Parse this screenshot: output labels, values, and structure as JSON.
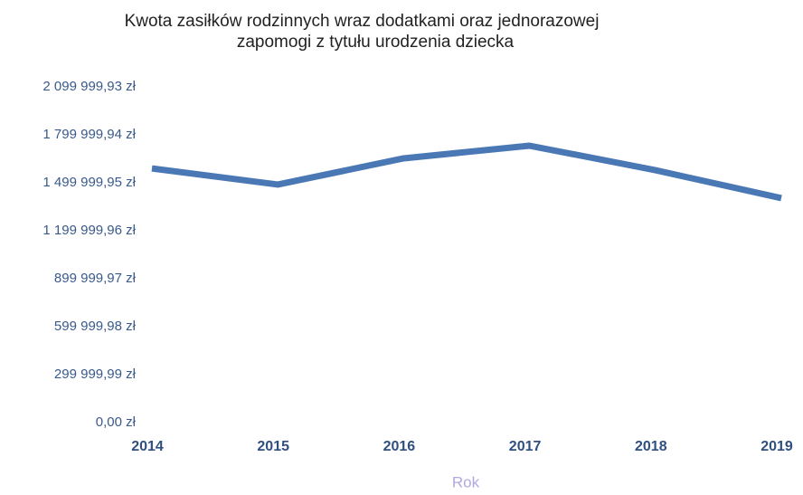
{
  "chart_data": {
    "type": "line",
    "title": [
      "Kwota zasiłków rodzinnych wraz dodatkami oraz jednorazowej",
      "zapomogi z tytułu urodzenia dziecka"
    ],
    "x_label": "Rok",
    "categories": [
      "2014",
      "2015",
      "2016",
      "2017",
      "2018",
      "2019"
    ],
    "series": [
      {
        "name": "Kwota",
        "color": "#4a78b5",
        "values": [
          1590000,
          1489000,
          1653000,
          1732000,
          1579000,
          1404000
        ]
      }
    ],
    "ylim": [
      0,
      2099999.93
    ],
    "yticks": [
      {
        "value": 0,
        "label": "0,00 zł"
      },
      {
        "value": 299999.99,
        "label": "299 999,99 zł"
      },
      {
        "value": 599999.98,
        "label": "599 999,98 zł"
      },
      {
        "value": 899999.97,
        "label": "899 999,97 zł"
      },
      {
        "value": 1199999.96,
        "label": "1 199 999,96 zł"
      },
      {
        "value": 1499999.95,
        "label": "1 499 999,95 zł"
      },
      {
        "value": 1799999.94,
        "label": "1 799 999,94 zł"
      },
      {
        "value": 2099999.93,
        "label": "2 099 999,93 zł"
      }
    ],
    "grid": false
  }
}
